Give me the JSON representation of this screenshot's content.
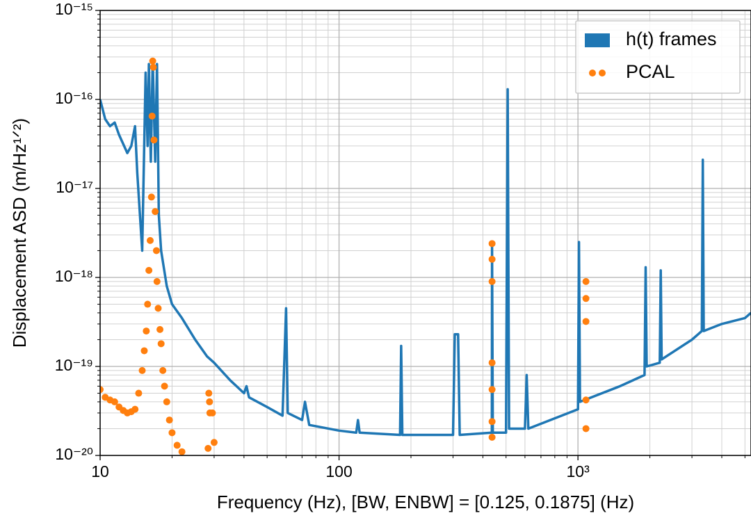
{
  "chart_data": {
    "type": "line",
    "xlabel": "Frequency (Hz), [BW, ENBW] = [0.125, 0.1875] (Hz)",
    "ylabel": "Displacement ASD (m/Hz¹ᐟ²)",
    "xscale": "log",
    "yscale": "log",
    "xlim": [
      10,
      5300
    ],
    "ylim": [
      1e-20,
      1e-15
    ],
    "xticks": [
      10,
      100,
      {
        "value": 1000,
        "label": "10³"
      }
    ],
    "yticks": [
      {
        "value": 1e-20,
        "label": "10⁻²⁰"
      },
      {
        "value": 1e-19,
        "label": "10⁻¹⁹"
      },
      {
        "value": 1e-18,
        "label": "10⁻¹⁸"
      },
      {
        "value": 1e-17,
        "label": "10⁻¹⁷"
      },
      {
        "value": 1e-16,
        "label": "10⁻¹⁶"
      },
      {
        "value": 1e-15,
        "label": "10⁻¹⁵"
      }
    ],
    "grid": true,
    "minor_grid": true,
    "legend": "upper right",
    "series": [
      {
        "name": "h(t) frames",
        "type": "line",
        "color": "#1f77b4",
        "x": [
          10,
          10.5,
          11,
          11.5,
          12,
          13,
          13.5,
          14,
          14.3,
          15,
          15.5,
          15.8,
          16,
          16.3,
          16.6,
          17,
          17.3,
          17.6,
          18,
          19,
          20,
          22,
          25,
          28,
          30,
          35,
          40,
          41,
          42,
          50,
          58,
          60,
          61,
          70,
          72,
          75,
          100,
          118,
          120,
          122,
          180,
          182,
          184,
          300,
          305,
          315,
          320,
          436,
          437,
          440,
          500,
          508,
          515,
          600,
          610,
          620,
          1000,
          1010,
          1020,
          1500,
          1900,
          1920,
          1940,
          2200,
          2220,
          2240,
          3000,
          3300,
          3330,
          3360,
          4000,
          5000,
          5300
        ],
        "values": [
          1e-16,
          6e-17,
          5e-17,
          5.5e-17,
          4e-17,
          2.5e-17,
          3e-17,
          5e-17,
          1.5e-17,
          2e-18,
          2e-16,
          3e-17,
          2.5e-16,
          2e-17,
          2.8e-16,
          2e-17,
          2.5e-16,
          5e-18,
          2e-18,
          8e-19,
          5e-19,
          3.5e-19,
          2e-19,
          1.3e-19,
          1.1e-19,
          7e-20,
          5e-20,
          6e-20,
          4.5e-20,
          3.5e-20,
          2.8e-20,
          4.5e-19,
          3e-20,
          2.5e-20,
          4e-20,
          2.2e-20,
          1.9e-20,
          1.8e-20,
          2.5e-20,
          1.8e-20,
          1.7e-20,
          1.7e-19,
          1.7e-20,
          1.7e-20,
          2.3e-19,
          2.3e-19,
          1.7e-20,
          1.8e-20,
          2.4e-18,
          1.8e-20,
          1.8e-20,
          1.3e-16,
          2e-20,
          2e-20,
          8e-20,
          2e-20,
          3.3e-20,
          2.5e-18,
          4e-20,
          6e-20,
          8e-20,
          1.3e-18,
          1e-19,
          1.1e-19,
          1.2e-18,
          1.2e-19,
          2e-19,
          2.5e-19,
          2.1e-17,
          2.5e-19,
          3e-19,
          3.5e-19,
          4e-19
        ]
      },
      {
        "name": "PCAL",
        "type": "scatter",
        "color": "#ff7f0e",
        "x": [
          10,
          10.5,
          11,
          11.5,
          12,
          12.5,
          13,
          13.5,
          14,
          14.5,
          15,
          15.3,
          15.6,
          15.8,
          16,
          16.2,
          16.4,
          16.5,
          16.6,
          16.7,
          16.8,
          17,
          17.2,
          17.3,
          17.5,
          17.8,
          18,
          18.3,
          18.6,
          19,
          19.5,
          20,
          21,
          22,
          28.5,
          28.7,
          28.8,
          28.3,
          29.5,
          30,
          437,
          437,
          437,
          437,
          437,
          437,
          437,
          1080,
          1080,
          1080,
          1080,
          1080
        ],
        "values": [
          5.5e-20,
          4.5e-20,
          4.2e-20,
          4e-20,
          3.5e-20,
          3.2e-20,
          3e-20,
          3.1e-20,
          3.3e-20,
          5e-20,
          9e-20,
          1.5e-19,
          2.5e-19,
          5e-19,
          1.2e-18,
          2.6e-18,
          8e-18,
          6.5e-17,
          2.7e-16,
          2.3e-16,
          3.5e-17,
          5.5e-18,
          2e-18,
          9e-19,
          4.5e-19,
          2.6e-19,
          1.8e-19,
          9e-20,
          6e-20,
          4e-20,
          2.5e-20,
          1.8e-20,
          1.3e-20,
          1.1e-20,
          5e-20,
          4e-20,
          3e-20,
          1.2e-20,
          3e-20,
          1.4e-20,
          2.4e-18,
          1.6e-18,
          9e-19,
          1.1e-19,
          5.5e-20,
          2.4e-20,
          1.6e-20,
          9e-19,
          5.8e-19,
          3.2e-19,
          4.2e-20,
          2e-20
        ]
      }
    ]
  }
}
